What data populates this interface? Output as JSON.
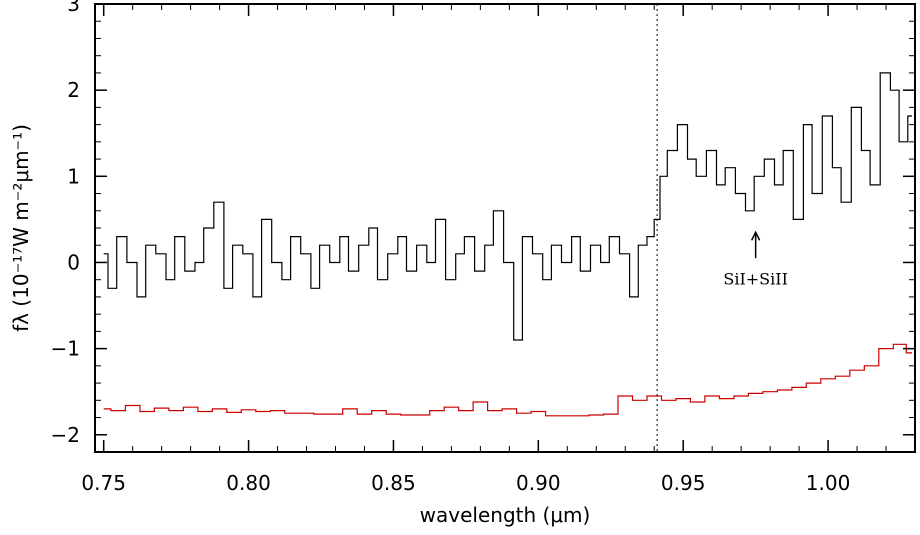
{
  "chart_data": {
    "type": "line",
    "title": "",
    "xlabel": "wavelength (μm)",
    "ylabel": "fλ (10⁻¹⁷W m⁻²μm⁻¹)",
    "xlim": [
      0.747,
      1.03
    ],
    "ylim": [
      -2.2,
      3.0
    ],
    "x_ticks": [
      0.75,
      0.8,
      0.85,
      0.9,
      0.95,
      1.0
    ],
    "x_tick_labels": [
      "0.75",
      "0.80",
      "0.85",
      "0.90",
      "0.95",
      "1.00"
    ],
    "y_ticks": [
      -2,
      -1,
      0,
      1,
      2,
      3
    ],
    "y_tick_labels": [
      "−2",
      "−1",
      "0",
      "1",
      "2",
      "3"
    ],
    "grid": false,
    "legend": "none",
    "series": [
      {
        "color": "#000000",
        "style": "steps",
        "x": [
          0.75,
          0.753,
          0.756,
          0.76,
          0.763,
          0.766,
          0.77,
          0.773,
          0.776,
          0.78,
          0.783,
          0.786,
          0.79,
          0.793,
          0.796,
          0.8,
          0.803,
          0.806,
          0.81,
          0.813,
          0.816,
          0.82,
          0.823,
          0.826,
          0.83,
          0.833,
          0.836,
          0.84,
          0.843,
          0.846,
          0.85,
          0.853,
          0.856,
          0.86,
          0.863,
          0.866,
          0.87,
          0.873,
          0.876,
          0.88,
          0.883,
          0.886,
          0.89,
          0.893,
          0.896,
          0.9,
          0.903,
          0.906,
          0.91,
          0.913,
          0.916,
          0.92,
          0.923,
          0.926,
          0.93,
          0.933,
          0.936,
          0.939,
          0.941,
          0.943,
          0.946,
          0.95,
          0.953,
          0.956,
          0.96,
          0.963,
          0.966,
          0.97,
          0.973,
          0.976,
          0.98,
          0.983,
          0.986,
          0.99,
          0.993,
          0.996,
          1.0,
          1.003,
          1.006,
          1.01,
          1.013,
          1.016,
          1.02,
          1.023,
          1.026,
          1.029
        ],
        "values": [
          0.1,
          -0.3,
          0.3,
          0.0,
          -0.4,
          0.2,
          0.1,
          -0.2,
          0.3,
          -0.1,
          0.0,
          0.4,
          0.7,
          -0.3,
          0.2,
          0.1,
          -0.4,
          0.5,
          0.0,
          -0.2,
          0.3,
          0.1,
          -0.3,
          0.2,
          0.0,
          0.3,
          -0.1,
          0.2,
          0.4,
          -0.2,
          0.1,
          0.3,
          -0.1,
          0.2,
          0.0,
          0.5,
          -0.2,
          0.1,
          0.3,
          -0.1,
          0.2,
          0.6,
          0.0,
          -0.9,
          0.3,
          0.1,
          -0.2,
          0.2,
          0.0,
          0.3,
          -0.1,
          0.2,
          0.0,
          0.3,
          0.1,
          -0.4,
          0.2,
          0.3,
          0.5,
          1.0,
          1.3,
          1.6,
          1.2,
          1.0,
          1.3,
          0.9,
          1.1,
          0.8,
          0.6,
          1.0,
          1.2,
          0.9,
          1.3,
          0.5,
          1.6,
          0.8,
          1.7,
          1.1,
          0.7,
          1.8,
          1.3,
          0.9,
          2.2,
          2.0,
          1.4,
          1.7
        ]
      },
      {
        "color": "#cc0000",
        "style": "steps",
        "x": [
          0.75,
          0.755,
          0.76,
          0.765,
          0.77,
          0.775,
          0.78,
          0.785,
          0.79,
          0.795,
          0.8,
          0.805,
          0.81,
          0.815,
          0.82,
          0.825,
          0.83,
          0.835,
          0.84,
          0.845,
          0.85,
          0.855,
          0.86,
          0.865,
          0.87,
          0.875,
          0.88,
          0.885,
          0.89,
          0.895,
          0.9,
          0.905,
          0.91,
          0.915,
          0.92,
          0.925,
          0.93,
          0.935,
          0.94,
          0.945,
          0.95,
          0.955,
          0.96,
          0.965,
          0.97,
          0.975,
          0.98,
          0.985,
          0.99,
          0.995,
          1.0,
          1.005,
          1.01,
          1.015,
          1.02,
          1.025,
          1.029
        ],
        "values": [
          -1.7,
          -1.72,
          -1.66,
          -1.73,
          -1.69,
          -1.72,
          -1.68,
          -1.73,
          -1.7,
          -1.74,
          -1.71,
          -1.73,
          -1.72,
          -1.75,
          -1.75,
          -1.76,
          -1.76,
          -1.7,
          -1.76,
          -1.72,
          -1.76,
          -1.77,
          -1.77,
          -1.72,
          -1.68,
          -1.72,
          -1.62,
          -1.72,
          -1.7,
          -1.75,
          -1.73,
          -1.78,
          -1.78,
          -1.78,
          -1.77,
          -1.76,
          -1.55,
          -1.6,
          -1.55,
          -1.6,
          -1.58,
          -1.62,
          -1.55,
          -1.58,
          -1.55,
          -1.52,
          -1.5,
          -1.48,
          -1.45,
          -1.4,
          -1.35,
          -1.32,
          -1.25,
          -1.2,
          -1.0,
          -0.95,
          -1.05
        ]
      }
    ],
    "vline": {
      "x": 0.941,
      "style": "dotted"
    },
    "annotation": {
      "text": "SiI+SiII",
      "x": 0.975,
      "y": -0.2,
      "arrow_to_y": 0.35
    }
  }
}
